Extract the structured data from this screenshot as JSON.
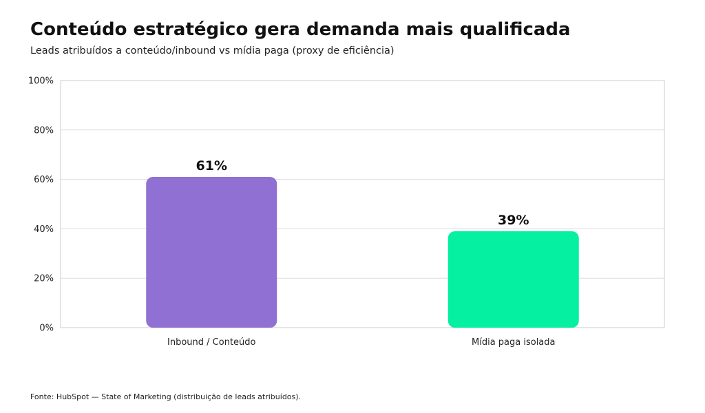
{
  "chart_data": {
    "type": "bar",
    "title": "Conteúdo estratégico gera demanda mais qualificada",
    "subtitle": "Leads atribuídos a conteúdo/inbound vs mídia paga (proxy de eficiência)",
    "categories": [
      "Inbound / Conteúdo",
      "Mídia paga isolada"
    ],
    "values": [
      61,
      39
    ],
    "data_labels": [
      "61%",
      "39%"
    ],
    "colors": [
      "#9070d2",
      "#05f0a0"
    ],
    "ylim": [
      0,
      100
    ],
    "yticks": [
      0,
      20,
      40,
      60,
      80,
      100
    ],
    "ytick_labels": [
      "0%",
      "20%",
      "40%",
      "60%",
      "80%",
      "100%"
    ],
    "xlabel": "",
    "ylabel": "",
    "grid": true,
    "legend": "none"
  },
  "footer": {
    "source": "Fonte: HubSpot — State of Marketing (distribuição de leads atribuídos)."
  }
}
